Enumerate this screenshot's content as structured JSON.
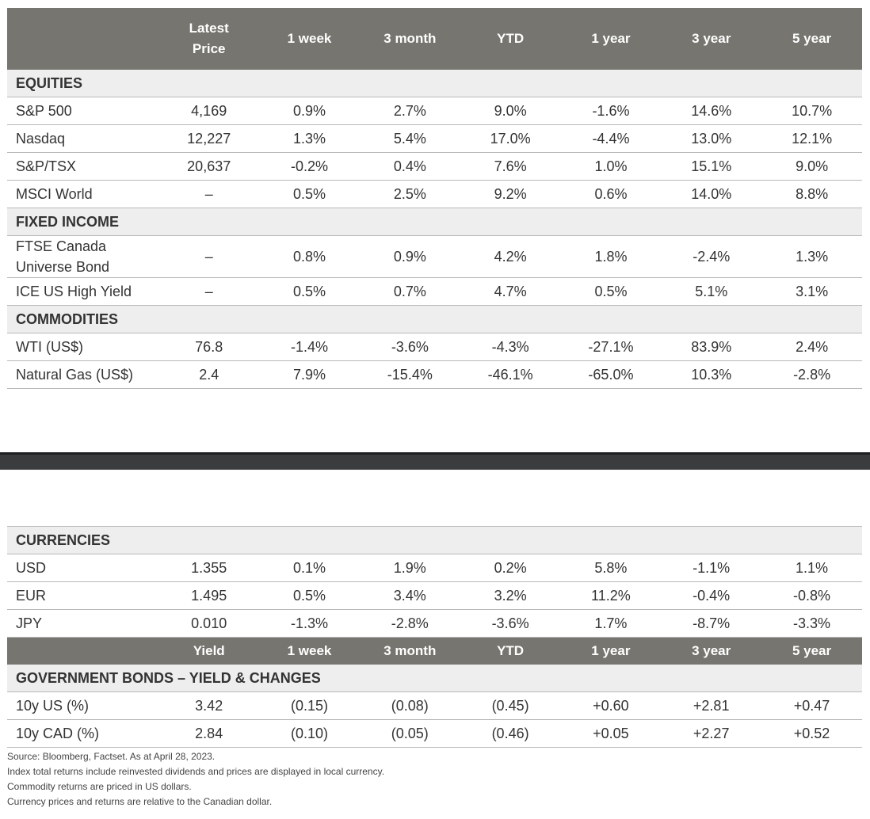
{
  "columns": [
    "Latest Price",
    "1 week",
    "3 month",
    "YTD",
    "1 year",
    "3 year",
    "5 year"
  ],
  "top_table": {
    "sections": [
      {
        "title": "EQUITIES",
        "rows": [
          {
            "label": "S&P 500",
            "values": [
              "4,169",
              "0.9%",
              "2.7%",
              "9.0%",
              "-1.6%",
              "14.6%",
              "10.7%"
            ]
          },
          {
            "label": "Nasdaq",
            "values": [
              "12,227",
              "1.3%",
              "5.4%",
              "17.0%",
              "-4.4%",
              "13.0%",
              "12.1%"
            ]
          },
          {
            "label": "S&P/TSX",
            "values": [
              "20,637",
              "-0.2%",
              "0.4%",
              "7.6%",
              "1.0%",
              "15.1%",
              "9.0%"
            ]
          },
          {
            "label": "MSCI World",
            "values": [
              "–",
              "0.5%",
              "2.5%",
              "9.2%",
              "0.6%",
              "14.0%",
              "8.8%"
            ]
          }
        ]
      },
      {
        "title": "FIXED INCOME",
        "rows": [
          {
            "label": "FTSE Canada Universe Bond",
            "values": [
              "–",
              "0.8%",
              "0.9%",
              "4.2%",
              "1.8%",
              "-2.4%",
              "1.3%"
            ]
          },
          {
            "label": "ICE US High Yield",
            "values": [
              "–",
              "0.5%",
              "0.7%",
              "4.7%",
              "0.5%",
              "5.1%",
              "3.1%"
            ]
          }
        ]
      },
      {
        "title": "COMMODITIES",
        "rows": [
          {
            "label": "WTI (US$)",
            "values": [
              "76.8",
              "-1.4%",
              "-3.6%",
              "-4.3%",
              "-27.1%",
              "83.9%",
              "2.4%"
            ]
          },
          {
            "label": "Natural Gas (US$)",
            "values": [
              "2.4",
              "7.9%",
              "-15.4%",
              "-46.1%",
              "-65.0%",
              "10.3%",
              "-2.8%"
            ]
          }
        ]
      }
    ]
  },
  "bottom_table": {
    "currencies": {
      "title": "CURRENCIES",
      "rows": [
        {
          "label": "USD",
          "values": [
            "1.355",
            "0.1%",
            "1.9%",
            "0.2%",
            "5.8%",
            "-1.1%",
            "1.1%"
          ]
        },
        {
          "label": "EUR",
          "values": [
            "1.495",
            "0.5%",
            "3.4%",
            "3.2%",
            "11.2%",
            "-0.4%",
            "-0.8%"
          ]
        },
        {
          "label": "JPY",
          "values": [
            "0.010",
            "-1.3%",
            "-2.8%",
            "-3.6%",
            "1.7%",
            "-8.7%",
            "-3.3%"
          ]
        }
      ]
    },
    "bond_columns": [
      "Yield",
      "1 week",
      "3 month",
      "YTD",
      "1 year",
      "3 year",
      "5 year"
    ],
    "bonds": {
      "title": "GOVERNMENT BONDS – YIELD & CHANGES",
      "rows": [
        {
          "label": "10y US (%)",
          "values": [
            "3.42",
            "(0.15)",
            "(0.08)",
            "(0.45)",
            "+0.60",
            "+2.81",
            "+0.47"
          ]
        },
        {
          "label": "10y CAD (%)",
          "values": [
            "2.84",
            "(0.10)",
            "(0.05)",
            "(0.46)",
            "+0.05",
            "+2.27",
            "+0.52"
          ]
        }
      ]
    }
  },
  "notes": [
    "Source: Bloomberg, Factset. As at April 28, 2023.",
    "Index total returns include reinvested dividends and prices are displayed in local currency.",
    "Commodity returns are priced in US dollars.",
    "Currency prices and returns are relative to the Canadian dollar."
  ],
  "colors": {
    "header_bg": "#76756f",
    "section_bg": "#eeeeee",
    "divider": "#3b3c3e"
  }
}
